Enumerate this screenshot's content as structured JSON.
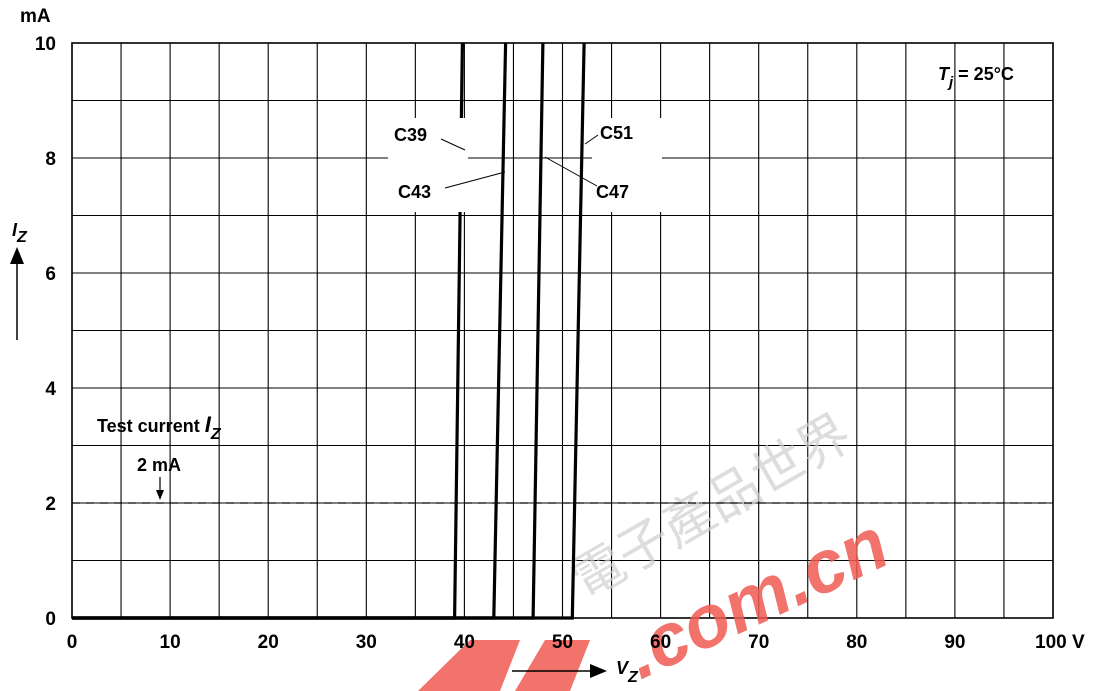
{
  "chart_data": {
    "type": "line",
    "title": "",
    "conditions": {
      "label": "Tj = 25°C",
      "symbol": "T",
      "subscript": "j",
      "rest": " = 25°C"
    },
    "xlabel": {
      "symbol": "V",
      "subscript": "Z"
    },
    "ylabel": {
      "symbol": "I",
      "subscript": "Z"
    },
    "x_unit": "V",
    "y_unit": "mA",
    "xlim": [
      0,
      100
    ],
    "ylim": [
      0,
      10
    ],
    "x_ticks": [
      0,
      10,
      20,
      30,
      40,
      50,
      60,
      70,
      80,
      90,
      100
    ],
    "x_tick_labels": [
      "0",
      "10",
      "20",
      "30",
      "40",
      "50",
      "60",
      "70",
      "80",
      "90",
      "100 V"
    ],
    "y_ticks": [
      0,
      2,
      4,
      6,
      8,
      10
    ],
    "y_tick_labels": [
      "0",
      "2",
      "4",
      "6",
      "8",
      "10"
    ],
    "y_unit_label": "mA",
    "grid": true,
    "series": [
      {
        "name": "C39",
        "points": [
          [
            0,
            0
          ],
          [
            39.0,
            0
          ],
          [
            39.8,
            10
          ]
        ]
      },
      {
        "name": "C43",
        "points": [
          [
            0,
            0
          ],
          [
            43.0,
            0
          ],
          [
            44.2,
            10
          ]
        ]
      },
      {
        "name": "C47",
        "points": [
          [
            0,
            0
          ],
          [
            47.0,
            0
          ],
          [
            48.0,
            10
          ]
        ]
      },
      {
        "name": "C51",
        "points": [
          [
            0,
            0
          ],
          [
            51.0,
            0
          ],
          [
            52.2,
            10
          ]
        ]
      }
    ],
    "annotations": {
      "test_current_label": {
        "text": "Test current ",
        "symbol": "I",
        "subscript": "Z"
      },
      "test_current_value": "2 mA",
      "test_current_line_y": 2
    }
  },
  "watermark": {
    "text": ".com.cn",
    "cjk": "電子產品世界"
  }
}
